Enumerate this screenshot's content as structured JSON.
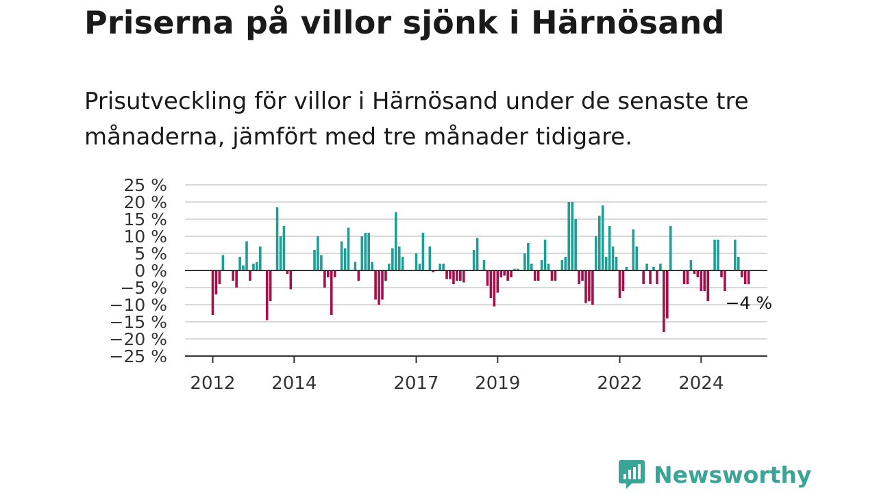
{
  "title": "Priserna på villor sjönk i Härnösand",
  "subtitle": "Prisutveckling för villor i Härnösand under de senaste tre månaderna, jämfört med tre månader tidigare.",
  "brand": {
    "name": "Newsworthy",
    "color": "#3aa596",
    "icon": "bar-chart-bubble-icon"
  },
  "colors": {
    "positive": "#1ba097",
    "negative": "#a3104a",
    "grid": "#d9d9d9",
    "axis": "#333333"
  },
  "chart_data": {
    "type": "bar",
    "ylim": [
      -25,
      25
    ],
    "y_ticks": [
      25,
      20,
      15,
      10,
      5,
      0,
      -5,
      -10,
      -15,
      -20,
      -25
    ],
    "y_tick_labels": [
      "25 %",
      "20 %",
      "15 %",
      "10 %",
      "5 %",
      "0 %",
      "−5 %",
      "−10 %",
      "−15 %",
      "−20 %",
      "−25 %"
    ],
    "x_ticks": [
      2012,
      2014,
      2017,
      2019,
      2022,
      2024
    ],
    "x_tick_labels": [
      "2012",
      "2014",
      "2017",
      "2019",
      "2022",
      "2024"
    ],
    "start": "2012-01",
    "end_label": "−4 %",
    "grid": true,
    "values": [
      -13,
      -7,
      -4,
      4.5,
      0,
      0,
      -3,
      -5,
      4,
      1.5,
      8.5,
      -3,
      2,
      2.5,
      7,
      0,
      -14.5,
      -9,
      0,
      18.5,
      10,
      13,
      -1,
      -5.5,
      0,
      0,
      0,
      0,
      0,
      0,
      6,
      10,
      4.5,
      -5,
      -2,
      -13,
      -2,
      0,
      8.5,
      6.5,
      12.5,
      0,
      2.5,
      -3,
      10,
      11,
      11,
      2.5,
      -8.5,
      -10,
      -8.5,
      -3,
      2,
      6.5,
      17,
      7,
      4,
      0,
      0,
      0,
      5,
      2,
      11,
      0,
      7,
      -0.5,
      0,
      2,
      2,
      -2.5,
      -2.5,
      -4,
      -3,
      -3,
      -3.5,
      0,
      0,
      6,
      9.5,
      0,
      3,
      -4.5,
      -8,
      -10.5,
      -6.5,
      -2,
      -1.5,
      -3,
      -2,
      0.5,
      0.5,
      0,
      5,
      8,
      2,
      -3,
      -3,
      3,
      9,
      2,
      -3,
      -3,
      0,
      3,
      4,
      20,
      20,
      15,
      -4,
      -3,
      -9.5,
      -9,
      -10,
      10,
      16,
      19,
      4,
      13,
      7,
      4,
      -8,
      -6,
      1,
      0,
      12,
      7,
      0,
      -4,
      2,
      -4,
      1,
      -4,
      2,
      -18,
      -14,
      13,
      0,
      0,
      0,
      -4,
      -4,
      3,
      -1,
      -2,
      -6,
      -6,
      -9,
      0,
      9,
      9,
      -2,
      -6,
      0,
      0,
      9,
      4,
      -2,
      -4,
      -4
    ]
  }
}
